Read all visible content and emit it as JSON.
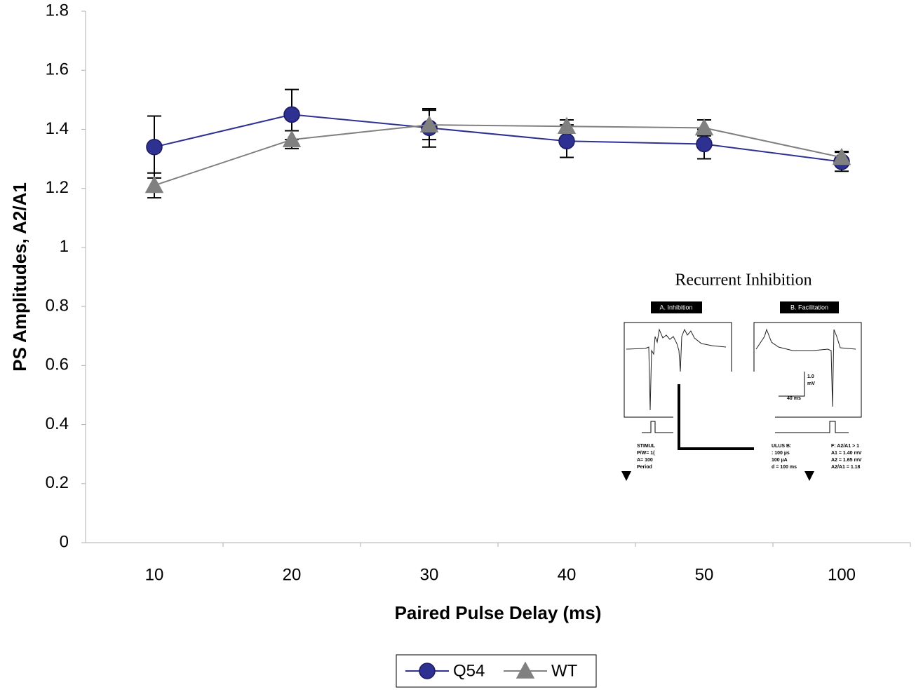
{
  "chart_data": {
    "type": "line",
    "x_label": "Paired Pulse Delay (ms)",
    "y_label": "PS Amplitudes, A2/A1",
    "categories": [
      "10",
      "20",
      "30",
      "40",
      "50",
      "100"
    ],
    "series": [
      {
        "name": "Q54",
        "color": "#2e3192",
        "marker": "circle",
        "values": [
          1.34,
          1.45,
          1.405,
          1.36,
          1.35,
          1.29
        ],
        "errors": [
          0.105,
          0.085,
          0.065,
          0.055,
          0.05,
          0.032
        ]
      },
      {
        "name": "WT",
        "color": "#808080",
        "marker": "triangle",
        "values": [
          1.21,
          1.365,
          1.415,
          1.41,
          1.405,
          1.305
        ],
        "errors": [
          0.042,
          0.03,
          0.05,
          0.022,
          0.027,
          0.02
        ]
      }
    ],
    "ylim": [
      0,
      1.8
    ],
    "yticks": [
      0,
      0.2,
      0.4,
      0.6,
      0.8,
      1,
      1.2,
      1.4,
      1.6,
      1.8
    ],
    "legend": "bottom",
    "inset": {
      "title": "Recurrent Inhibition",
      "panel_a": "A. Inhibition",
      "panel_b": "B. Facilitation",
      "scale_v": "1.0",
      "scale_v_unit": "mV",
      "scale_t": "40 ms",
      "left_text": [
        "STIMUL",
        "P/W= 1(",
        "A= 100",
        "Period"
      ],
      "mid_text": [
        "ULUS B:",
        ": 100 µs",
        "100 µA",
        "d = 100 ms"
      ],
      "right_text": [
        "F: A2/A1 > 1",
        "A1 = 1.40 mV",
        "A2 = 1.65 mV",
        "A2/A1 = 1.18"
      ]
    }
  }
}
